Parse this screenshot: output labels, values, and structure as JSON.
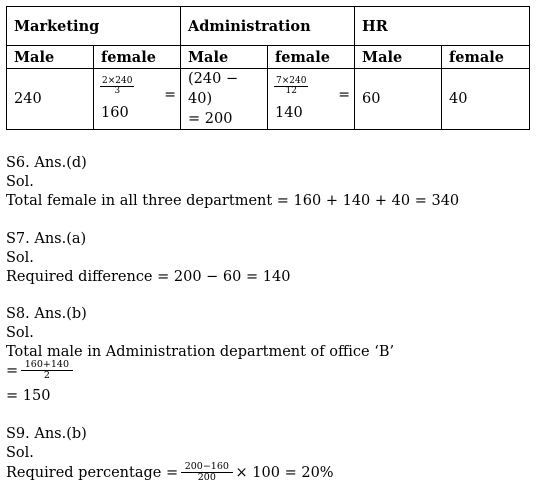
{
  "table": {
    "headers": [
      "Marketing",
      "Administration",
      "HR"
    ],
    "subheaders": [
      "Male",
      "female",
      "Male",
      "female",
      "Male",
      "female"
    ],
    "marketing_male": "240",
    "marketing_female": {
      "num": "2×240",
      "den": "3",
      "eq": "=",
      "result": "160"
    },
    "admin_male": {
      "line1": "(240 − 40)",
      "line2": "= 200"
    },
    "admin_female": {
      "num": "7×240",
      "den": "12",
      "eq": "=",
      "result": "140"
    },
    "hr_male": "60",
    "hr_female": "40"
  },
  "s6": {
    "title": "S6. Ans.(d)",
    "sol": "Sol.",
    "line": "Total female in all three department = 160 + 140 + 40 = 340"
  },
  "s7": {
    "title": "S7. Ans.(a)",
    "sol": "Sol.",
    "line": "Required difference = 200 − 60 = 140"
  },
  "s8": {
    "title": "S8. Ans.(b)",
    "sol": "Sol.",
    "line": "Total male in Administration department of office ‘B’",
    "eq": "=",
    "num": "160+140",
    "den": "2",
    "result": "= 150"
  },
  "s9": {
    "title": "S9. Ans.(b)",
    "sol": "Sol.",
    "prefix": "Required percentage =",
    "num": "200−160",
    "den": "200",
    "suffix": "× 100 = 20%"
  }
}
